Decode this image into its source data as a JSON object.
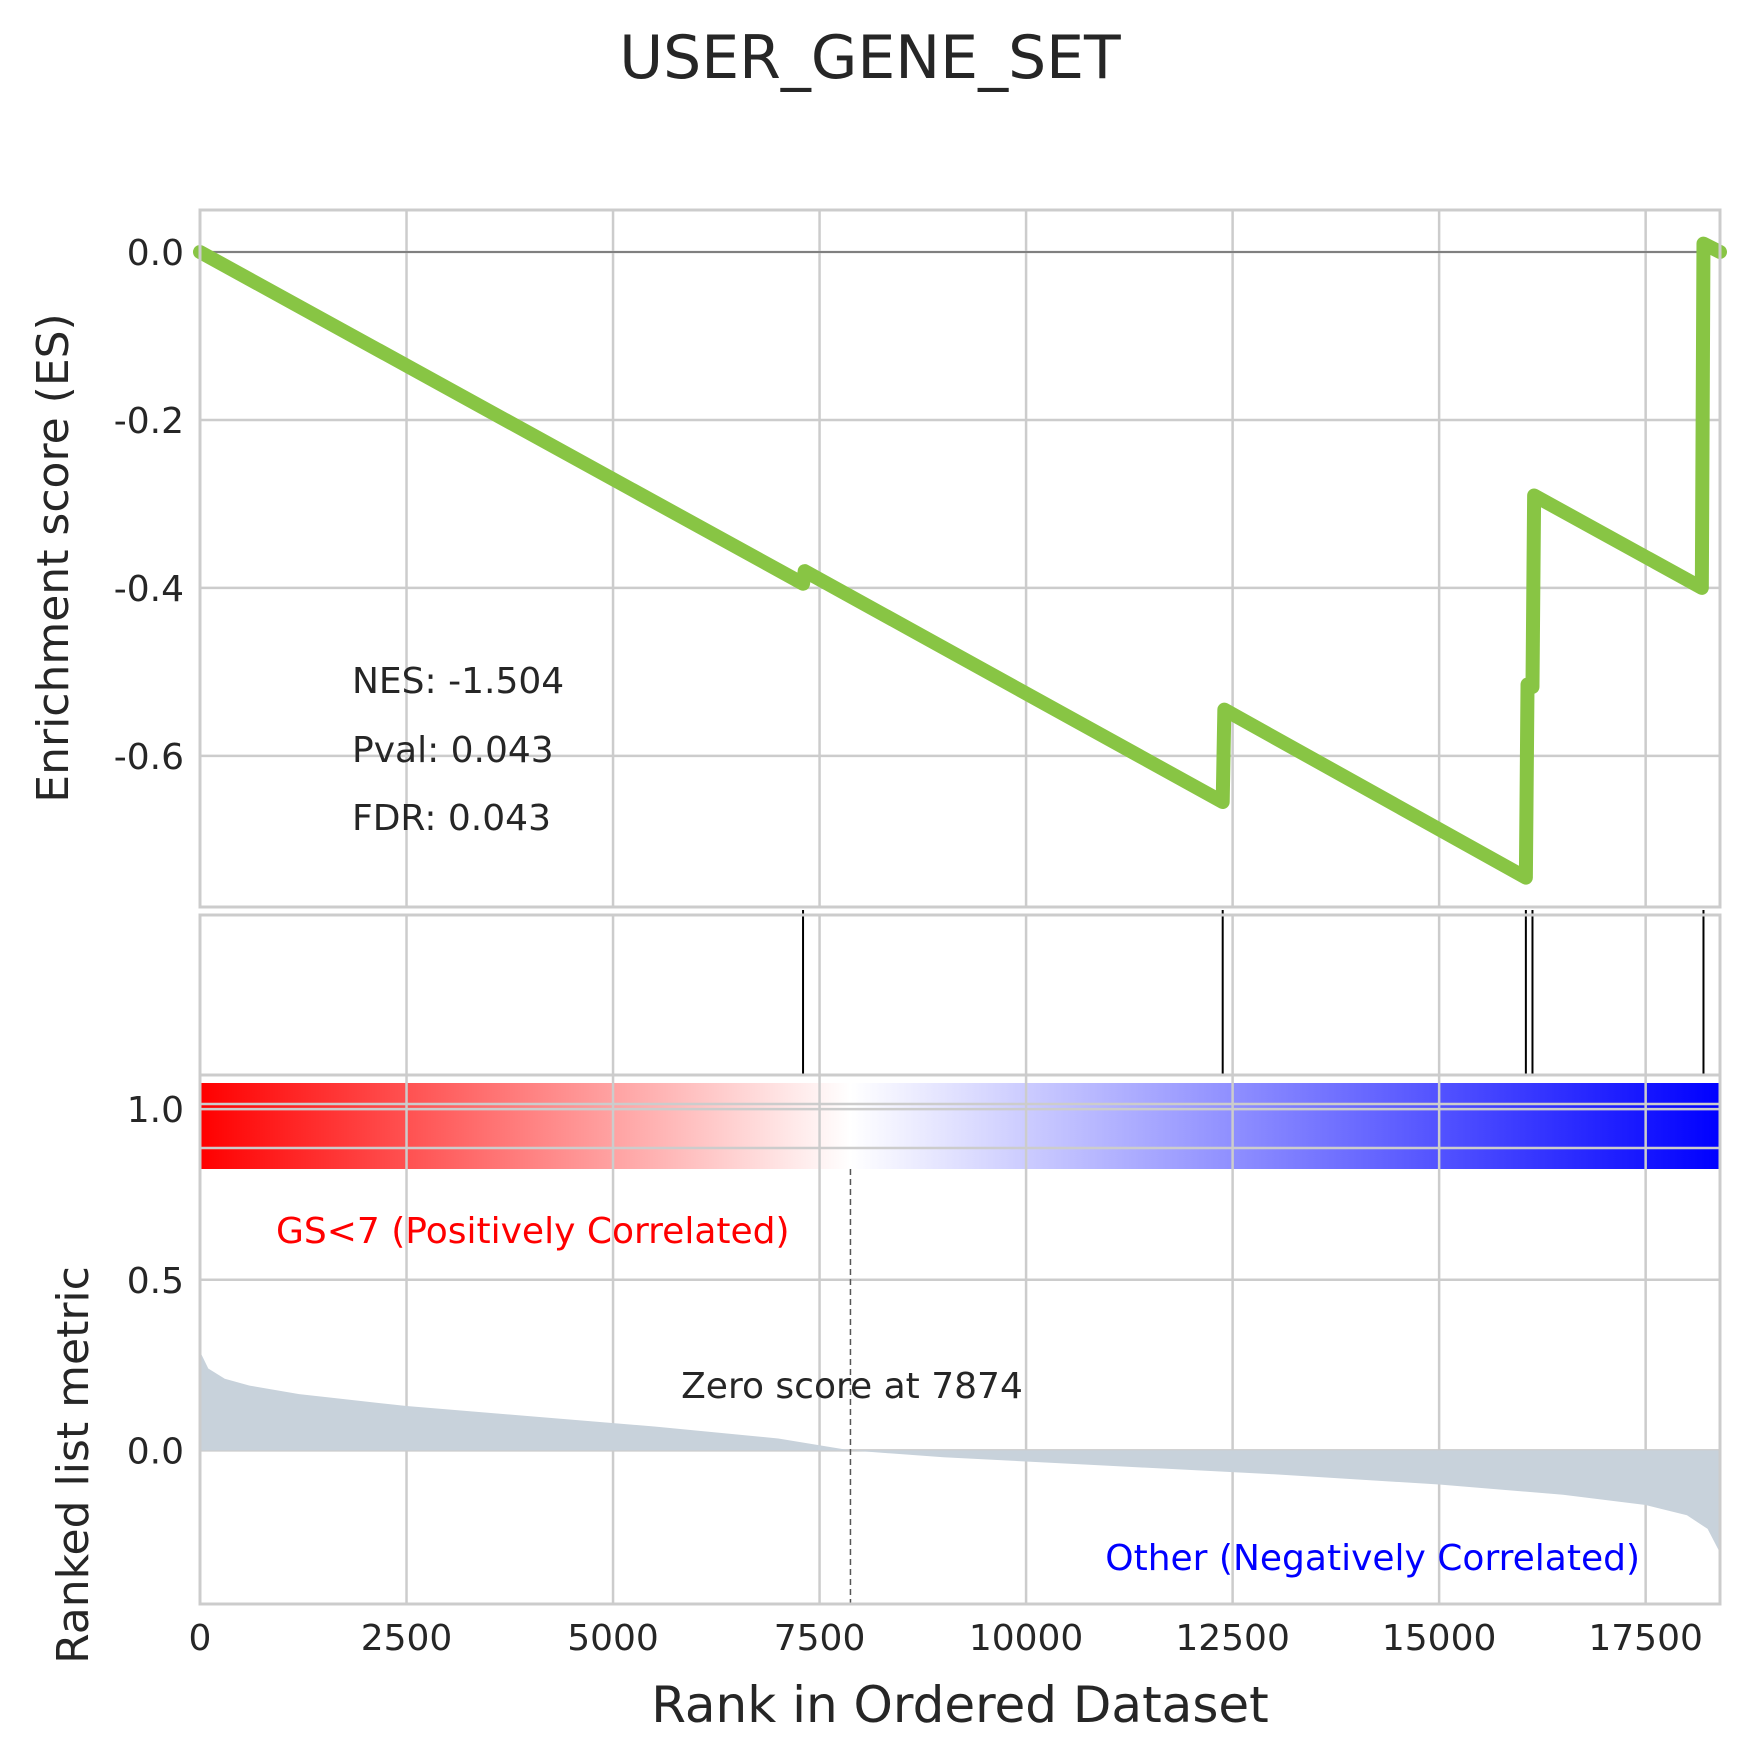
{
  "chart_data": {
    "type": "line",
    "title": "USER_GENE_SET",
    "x_range": [
      0,
      18400
    ],
    "x_ticks": [
      0,
      2500,
      5000,
      7500,
      10000,
      12500,
      15000,
      17500
    ],
    "x_tick_labels": [
      "0",
      "2500",
      "5000",
      "7500",
      "10000",
      "12500",
      "15000",
      "17500"
    ],
    "xlabel": "Rank in Ordered Dataset",
    "es_panel": {
      "ylabel": "Enrichment score (ES)",
      "ylim": [
        -0.78,
        0.05
      ],
      "y_ticks": [
        0.0,
        -0.2,
        -0.4,
        -0.6
      ],
      "y_tick_labels": [
        "0.0",
        "-0.2",
        "-0.4",
        "-0.6"
      ],
      "series_color": "#88c544",
      "points": [
        [
          0,
          0.0
        ],
        [
          7300,
          -0.395
        ],
        [
          7320,
          -0.38
        ],
        [
          12380,
          -0.655
        ],
        [
          12400,
          -0.545
        ],
        [
          16050,
          -0.745
        ],
        [
          16070,
          -0.515
        ],
        [
          16130,
          -0.518
        ],
        [
          16150,
          -0.29
        ],
        [
          18180,
          -0.4
        ],
        [
          18200,
          0.01
        ],
        [
          18400,
          0.0
        ]
      ],
      "annotations": [
        "NES: -1.504",
        "Pval: 0.043",
        "FDR: 0.043"
      ]
    },
    "hits_panel": {
      "hit_ranks": [
        7300,
        12380,
        16050,
        16130,
        18200
      ]
    },
    "ranked_panel": {
      "ylabel": "Ranked list metric",
      "ylim": [
        -0.45,
        1.1
      ],
      "y_ticks": [
        1.0,
        0.5,
        0.0
      ],
      "y_tick_labels": [
        "1.0",
        "0.5",
        "0.0"
      ],
      "fill_color": "#c8d2db",
      "colorbar": [
        "#ff0000",
        "#ffffff",
        "#0000ff"
      ],
      "metric_points": [
        [
          0,
          0.29
        ],
        [
          100,
          0.24
        ],
        [
          300,
          0.21
        ],
        [
          600,
          0.19
        ],
        [
          1200,
          0.165
        ],
        [
          2500,
          0.13
        ],
        [
          4000,
          0.1
        ],
        [
          5500,
          0.07
        ],
        [
          7000,
          0.035
        ],
        [
          7874,
          0.0
        ],
        [
          9000,
          -0.02
        ],
        [
          11000,
          -0.045
        ],
        [
          13000,
          -0.07
        ],
        [
          15000,
          -0.1
        ],
        [
          16500,
          -0.13
        ],
        [
          17500,
          -0.16
        ],
        [
          18000,
          -0.19
        ],
        [
          18250,
          -0.23
        ],
        [
          18400,
          -0.3
        ]
      ],
      "zero_score_rank": 7874,
      "zero_score_label": "Zero score at 7874",
      "pos_label": "GS<7 (Positively Correlated)",
      "pos_color": "#ff0000",
      "neg_label": "Other (Negatively Correlated)",
      "neg_color": "#0000ff"
    }
  }
}
